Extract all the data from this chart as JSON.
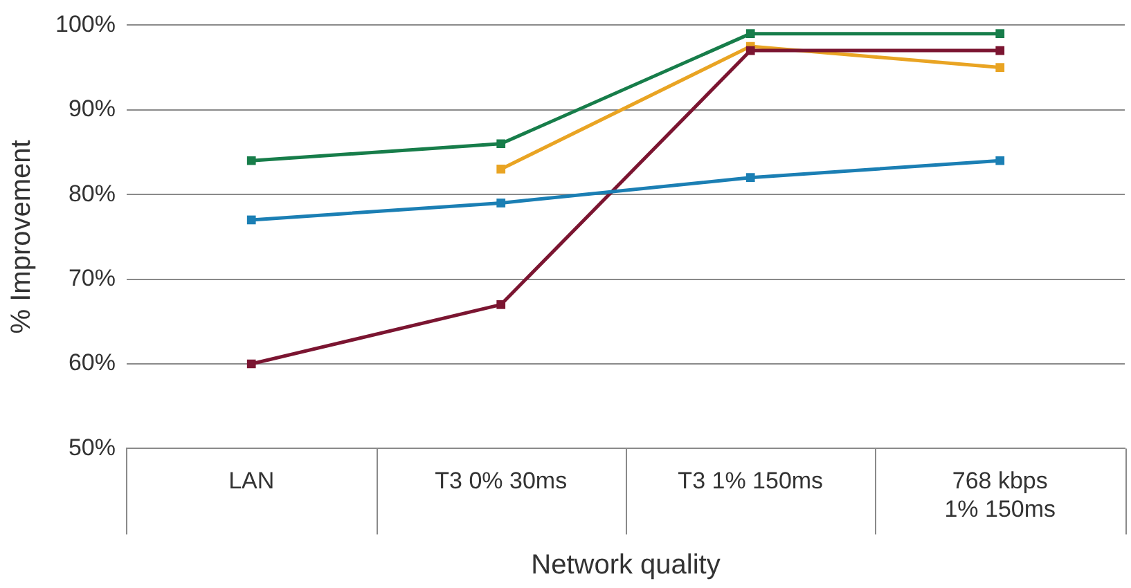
{
  "chart_data": {
    "type": "line",
    "xlabel": "Network quality",
    "ylabel": "% Improvement",
    "categories": [
      "LAN",
      "T3 0% 30ms",
      "T3 1% 150ms",
      "768 kbps\n1% 150ms"
    ],
    "series": [
      {
        "color": "#177d4a",
        "values": [
          84,
          86,
          99,
          99
        ]
      },
      {
        "color": "#e9a423",
        "values": [
          null,
          83,
          97.5,
          95
        ]
      },
      {
        "color": "#7b1531",
        "values": [
          60,
          67,
          97,
          97
        ]
      },
      {
        "color": "#1b7fb4",
        "values": [
          77,
          79,
          82,
          84
        ]
      }
    ],
    "ylim": [
      50,
      100
    ],
    "yticks": [
      {
        "value": 50,
        "label": "50%"
      },
      {
        "value": 60,
        "label": "60%"
      },
      {
        "value": 70,
        "label": "70%"
      },
      {
        "value": 80,
        "label": "80%"
      },
      {
        "value": 90,
        "label": "90%"
      },
      {
        "value": 100,
        "label": "100%"
      }
    ],
    "grid": "y",
    "legend": false,
    "marker": "square",
    "line_style": "solid"
  }
}
